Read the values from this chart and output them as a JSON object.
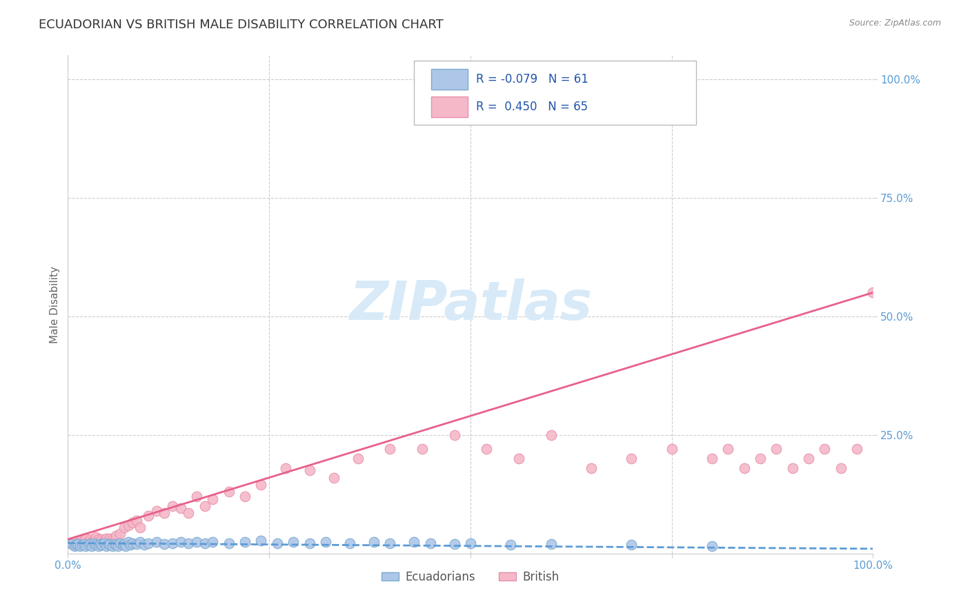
{
  "title": "ECUADORIAN VS BRITISH MALE DISABILITY CORRELATION CHART",
  "source": "Source: ZipAtlas.com",
  "ylabel": "Male Disability",
  "ecu_color": "#aec6e8",
  "ecu_edge": "#7aaad0",
  "brit_color": "#f4b8c8",
  "brit_edge": "#e890aa",
  "ecu_line_color": "#5b9bd5",
  "brit_line_color": "#e8608a",
  "axis_label_color": "#5b9bd5",
  "title_color": "#333333",
  "source_color": "#888888",
  "grid_color": "#cccccc",
  "watermark_color": "#d8eaf8",
  "R_ecu": -0.079,
  "N_ecu": 61,
  "R_brit": 0.45,
  "N_brit": 65,
  "ecu_x": [
    0.005,
    0.008,
    0.01,
    0.012,
    0.015,
    0.018,
    0.02,
    0.022,
    0.025,
    0.028,
    0.03,
    0.032,
    0.035,
    0.038,
    0.04,
    0.042,
    0.045,
    0.048,
    0.05,
    0.052,
    0.055,
    0.058,
    0.06,
    0.062,
    0.065,
    0.068,
    0.07,
    0.072,
    0.075,
    0.078,
    0.08,
    0.085,
    0.09,
    0.095,
    0.1,
    0.11,
    0.12,
    0.13,
    0.14,
    0.15,
    0.16,
    0.17,
    0.18,
    0.2,
    0.22,
    0.24,
    0.26,
    0.28,
    0.3,
    0.32,
    0.35,
    0.38,
    0.4,
    0.43,
    0.45,
    0.48,
    0.5,
    0.55,
    0.6,
    0.7,
    0.8
  ],
  "ecu_y": [
    0.02,
    0.015,
    0.018,
    0.02,
    0.015,
    0.018,
    0.02,
    0.015,
    0.018,
    0.02,
    0.015,
    0.022,
    0.018,
    0.015,
    0.02,
    0.018,
    0.022,
    0.015,
    0.02,
    0.018,
    0.015,
    0.02,
    0.018,
    0.015,
    0.022,
    0.018,
    0.02,
    0.015,
    0.025,
    0.018,
    0.022,
    0.02,
    0.025,
    0.018,
    0.022,
    0.025,
    0.02,
    0.022,
    0.025,
    0.022,
    0.025,
    0.022,
    0.025,
    0.022,
    0.025,
    0.028,
    0.022,
    0.025,
    0.022,
    0.025,
    0.022,
    0.025,
    0.022,
    0.025,
    0.022,
    0.02,
    0.022,
    0.018,
    0.02,
    0.018,
    0.015
  ],
  "brit_x": [
    0.005,
    0.008,
    0.01,
    0.012,
    0.015,
    0.018,
    0.02,
    0.022,
    0.025,
    0.028,
    0.03,
    0.032,
    0.035,
    0.038,
    0.04,
    0.042,
    0.045,
    0.048,
    0.05,
    0.052,
    0.055,
    0.058,
    0.06,
    0.065,
    0.07,
    0.075,
    0.08,
    0.085,
    0.09,
    0.1,
    0.11,
    0.12,
    0.13,
    0.14,
    0.15,
    0.16,
    0.17,
    0.18,
    0.2,
    0.22,
    0.24,
    0.27,
    0.3,
    0.33,
    0.36,
    0.4,
    0.44,
    0.48,
    0.52,
    0.56,
    0.6,
    0.65,
    0.7,
    0.75,
    0.8,
    0.82,
    0.84,
    0.86,
    0.88,
    0.9,
    0.92,
    0.94,
    0.96,
    0.98,
    1.0
  ],
  "brit_y": [
    0.02,
    0.025,
    0.018,
    0.022,
    0.025,
    0.03,
    0.028,
    0.032,
    0.025,
    0.03,
    0.025,
    0.028,
    0.035,
    0.03,
    0.025,
    0.03,
    0.028,
    0.032,
    0.025,
    0.032,
    0.03,
    0.028,
    0.038,
    0.042,
    0.055,
    0.06,
    0.065,
    0.07,
    0.055,
    0.08,
    0.09,
    0.085,
    0.1,
    0.095,
    0.085,
    0.12,
    0.1,
    0.115,
    0.13,
    0.12,
    0.145,
    0.18,
    0.175,
    0.16,
    0.2,
    0.22,
    0.22,
    0.25,
    0.22,
    0.2,
    0.25,
    0.18,
    0.2,
    0.22,
    0.2,
    0.22,
    0.18,
    0.2,
    0.22,
    0.18,
    0.2,
    0.22,
    0.18,
    0.22,
    0.55
  ],
  "xlim": [
    0.0,
    1.0
  ],
  "ylim": [
    0.0,
    1.05
  ],
  "yticks": [
    0.25,
    0.5,
    0.75,
    1.0
  ],
  "ytick_labels": [
    "25.0%",
    "50.0%",
    "75.0%",
    "100.0%"
  ],
  "xtick_labels_show": [
    "0.0%",
    "100.0%"
  ]
}
